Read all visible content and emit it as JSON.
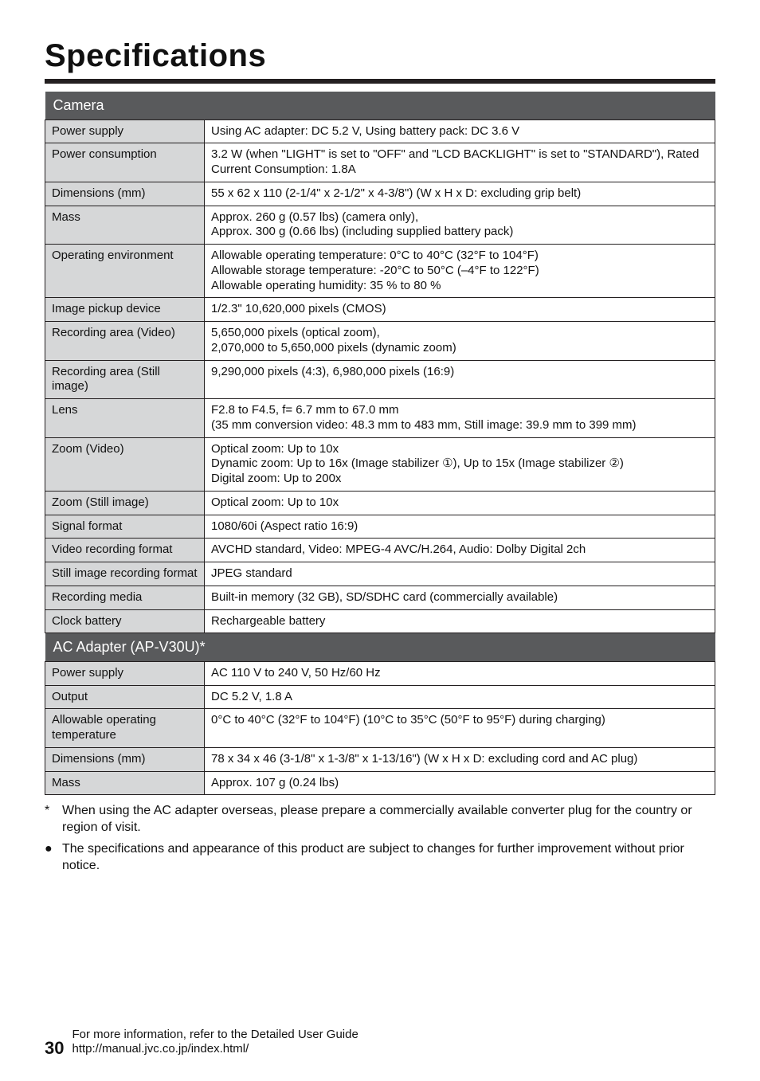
{
  "title": "Specifications",
  "sections": [
    {
      "header": "Camera",
      "rows": [
        {
          "label": "Power supply",
          "value": "Using AC adapter: DC 5.2 V, Using battery pack: DC 3.6 V"
        },
        {
          "label": "Power consumption",
          "value": "3.2 W (when \"LIGHT\" is set to \"OFF\" and \"LCD BACKLIGHT\" is set to \"STANDARD\"), Rated Current Consumption: 1.8A"
        },
        {
          "label": "Dimensions (mm)",
          "value": "55 x 62 x 110 (2-1/4\" x 2-1/2\" x 4-3/8\") (W x H x D: excluding grip belt)"
        },
        {
          "label": "Mass",
          "value": "Approx. 260 g (0.57 lbs) (camera only),\nApprox. 300 g (0.66 lbs) (including supplied battery pack)"
        },
        {
          "label": "Operating environment",
          "value": "Allowable operating temperature: 0°C to 40°C (32°F to 104°F)\nAllowable storage temperature: -20°C to 50°C (–4°F to 122°F)\nAllowable operating humidity: 35 % to 80 %"
        },
        {
          "label": "Image pickup device",
          "value": "1/2.3\" 10,620,000 pixels (CMOS)"
        },
        {
          "label": "Recording area (Video)",
          "value": "5,650,000 pixels (optical zoom),\n2,070,000 to 5,650,000 pixels (dynamic zoom)"
        },
        {
          "label": "Recording area (Still image)",
          "value": "9,290,000 pixels (4:3), 6,980,000 pixels (16:9)"
        },
        {
          "label": "Lens",
          "value": "F2.8 to F4.5, f= 6.7 mm to 67.0 mm\n(35 mm conversion video: 48.3 mm to 483 mm, Still image: 39.9 mm to 399 mm)"
        },
        {
          "label": "Zoom (Video)",
          "value": "Optical zoom: Up to 10x\nDynamic zoom: Up to 16x (Image stabilizer ①), Up to 15x (Image stabilizer ②)\nDigital zoom: Up to 200x"
        },
        {
          "label": "Zoom (Still image)",
          "value": "Optical zoom: Up to 10x"
        },
        {
          "label": "Signal format",
          "value": "1080/60i (Aspect ratio 16:9)"
        },
        {
          "label": "Video recording format",
          "value": "AVCHD standard, Video: MPEG-4 AVC/H.264, Audio: Dolby Digital 2ch"
        },
        {
          "label": "Still image recording format",
          "value": "JPEG standard"
        },
        {
          "label": "Recording media",
          "value": "Built-in memory (32 GB), SD/SDHC card (commercially available)"
        },
        {
          "label": "Clock battery",
          "value": "Rechargeable battery"
        }
      ]
    },
    {
      "header": "AC Adapter (AP-V30U)*",
      "rows": [
        {
          "label": "Power supply",
          "value": "AC 110 V to 240 V, 50 Hz/60 Hz"
        },
        {
          "label": "Output",
          "value": "DC 5.2 V, 1.8 A"
        },
        {
          "label": "Allowable operating temperature",
          "value": "0°C to 40°C (32°F to 104°F) (10°C to 35°C (50°F to 95°F) during charging)"
        },
        {
          "label": "Dimensions (mm)",
          "value": "78 x 34 x 46 (3-1/8\" x 1-3/8\" x 1-13/16\") (W x H x D: excluding cord and AC plug)"
        },
        {
          "label": "Mass",
          "value": "Approx. 107 g (0.24 lbs)"
        }
      ]
    }
  ],
  "notes": [
    {
      "marker": "*",
      "text": "When using the AC adapter overseas, please prepare a commercially available converter plug for the country or region of visit."
    },
    {
      "marker": "●",
      "text": "The specifications and appearance of this product are subject to changes for further improvement without prior notice."
    }
  ],
  "footer": {
    "page": "30",
    "line1": "For more information, refer to the Detailed User Guide",
    "line2": "http://manual.jvc.co.jp/index.html/"
  }
}
